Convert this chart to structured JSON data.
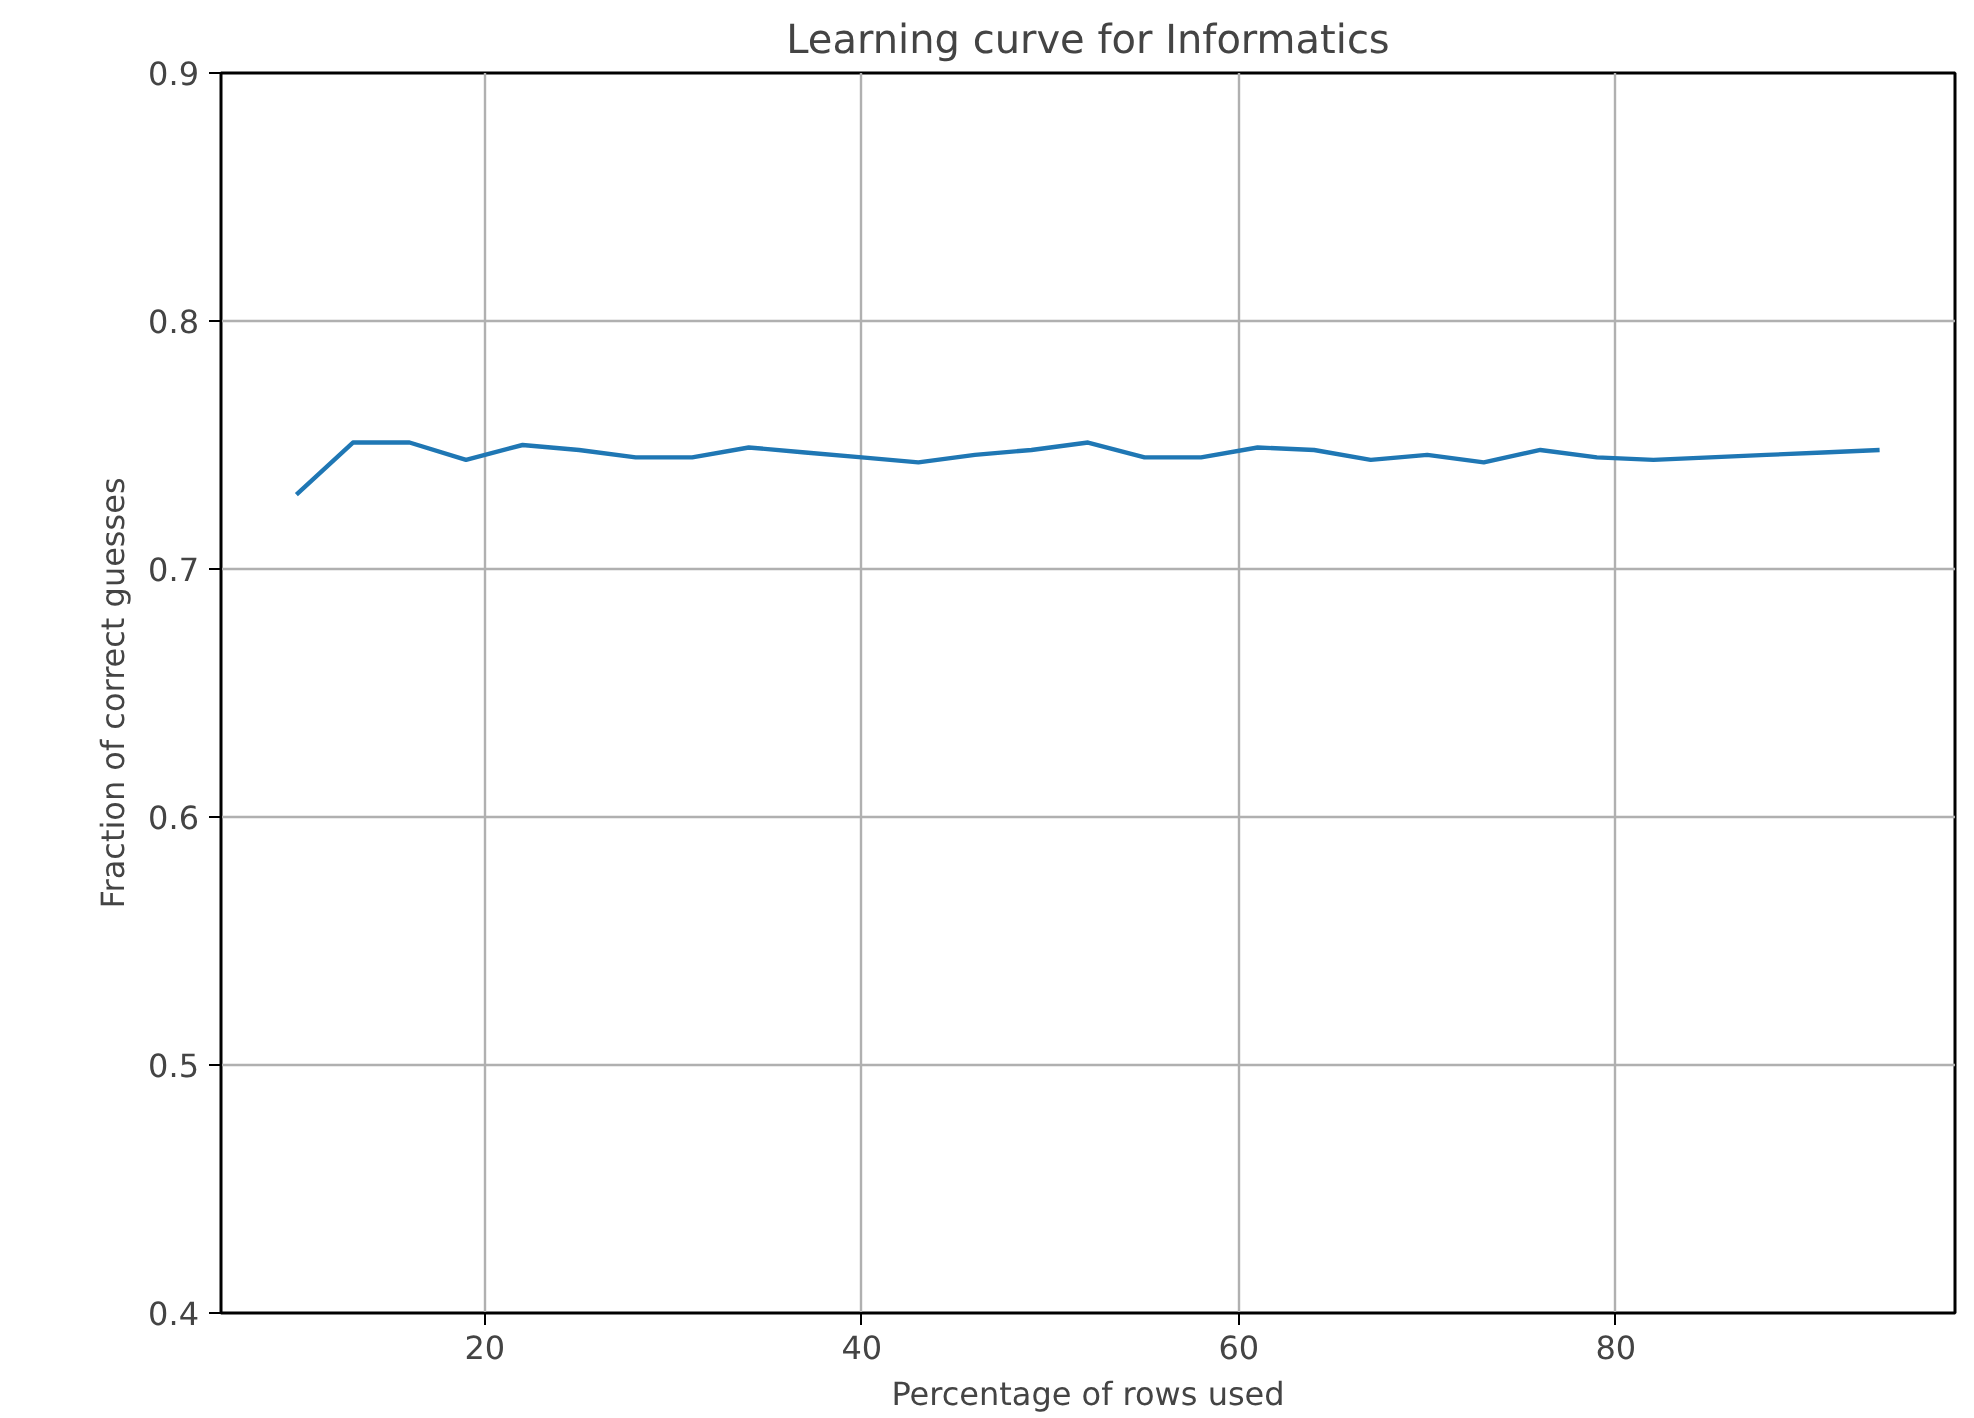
{
  "chart_data": {
    "type": "line",
    "title": "Learning curve for Informatics",
    "xlabel": "Percentage of rows used",
    "ylabel": "Fraction of correct guesses",
    "x": [
      10,
      13,
      16,
      19,
      22,
      25,
      28,
      31,
      34,
      37,
      40,
      43,
      46,
      49,
      52,
      55,
      58,
      61,
      64,
      67,
      70,
      73,
      76,
      79,
      82,
      85,
      88,
      91,
      94
    ],
    "series": [
      {
        "color": "#1f77b4",
        "values": [
          0.73,
          0.751,
          0.751,
          0.744,
          0.75,
          0.748,
          0.745,
          0.745,
          0.749,
          0.747,
          0.745,
          0.743,
          0.746,
          0.748,
          0.751,
          0.745,
          0.745,
          0.749,
          0.748,
          0.744,
          0.746,
          0.743,
          0.748,
          0.745,
          0.744,
          0.745,
          0.746,
          0.747,
          0.748
        ]
      }
    ],
    "xlim": [
      6,
      98
    ],
    "xticks": [
      20,
      40,
      60,
      80
    ],
    "ylim": [
      0.4,
      0.9
    ],
    "yticks": [
      0.4,
      0.5,
      0.6,
      0.7,
      0.8,
      0.9
    ],
    "grid": true,
    "marker": "none",
    "line_style": "solid"
  }
}
